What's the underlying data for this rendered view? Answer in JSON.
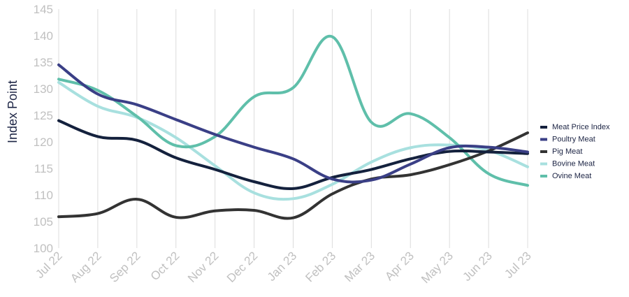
{
  "chart_data": {
    "type": "line",
    "title": "",
    "xlabel": "",
    "ylabel": "Index Point",
    "ylim": [
      100,
      145
    ],
    "yticks": [
      100,
      105,
      110,
      115,
      120,
      125,
      130,
      135,
      140,
      145
    ],
    "categories": [
      "Jul 22",
      "Aug 22",
      "Sep 22",
      "Oct 22",
      "Nov 22",
      "Dec 22",
      "Jan 23",
      "Feb 23",
      "Mar 23",
      "Apr 23",
      "May 23",
      "Jun 23",
      "Jul 23"
    ],
    "grid": "vertical",
    "legend_position": "right",
    "series": [
      {
        "name": "Meat Price Index",
        "color": "#14213d",
        "values": [
          124.0,
          121.0,
          120.3,
          117.0,
          114.8,
          112.5,
          111.2,
          113.3,
          114.8,
          116.8,
          118.2,
          118.1,
          117.8
        ]
      },
      {
        "name": "Poultry Meat",
        "color": "#3a3f86",
        "values": [
          134.5,
          129.0,
          127.0,
          124.2,
          121.4,
          119.0,
          116.8,
          113.0,
          112.8,
          115.8,
          118.9,
          119.0,
          118.1
        ]
      },
      {
        "name": "Pig Meat",
        "color": "#333333",
        "values": [
          105.9,
          106.5,
          109.2,
          105.8,
          107.0,
          107.1,
          105.7,
          110.2,
          113.0,
          113.8,
          115.7,
          118.3,
          121.7
        ]
      },
      {
        "name": "Bovine Meat",
        "color": "#a8e0df",
        "values": [
          131.2,
          126.7,
          124.6,
          120.8,
          115.5,
          110.4,
          109.3,
          112.0,
          116.2,
          118.9,
          119.4,
          118.4,
          115.3
        ]
      },
      {
        "name": "Ovine Meat",
        "color": "#5fbfaa",
        "values": [
          131.8,
          129.7,
          124.8,
          119.3,
          121.0,
          128.5,
          130.2,
          139.8,
          123.7,
          125.3,
          120.8,
          114.0,
          111.8
        ]
      }
    ]
  }
}
